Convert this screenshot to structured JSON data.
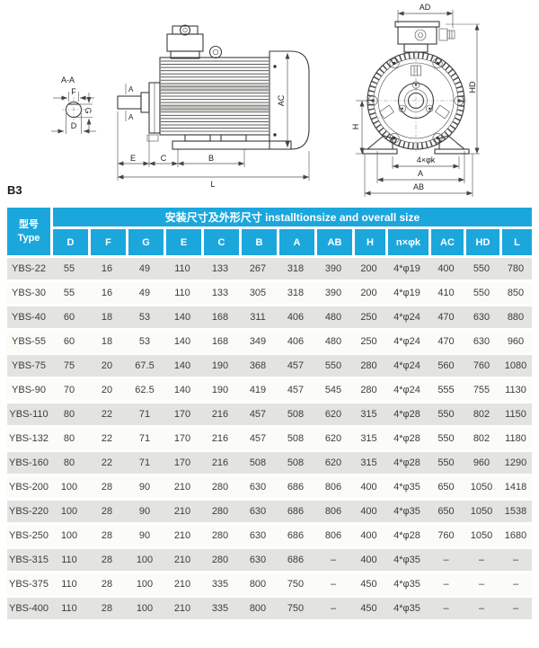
{
  "drawing": {
    "mount_label": "B3",
    "section_label": "A-A",
    "dims": {
      "f": "F",
      "g": "G",
      "d": "D",
      "a_marker": "A",
      "e": "E",
      "c": "C",
      "b": "B",
      "l": "L",
      "ac": "AC",
      "ad": "AD",
      "hd": "HD",
      "h": "H",
      "bolt_holes": "4×φk",
      "a": "A",
      "ab": "AB"
    }
  },
  "table": {
    "type_header": {
      "zh": "型号",
      "en": "Type"
    },
    "group_header": "安装尺寸及外形尺寸 installtionsize and overall size",
    "columns": [
      "D",
      "F",
      "G",
      "E",
      "C",
      "B",
      "A",
      "AB",
      "H",
      "n×φk",
      "AC",
      "HD",
      "L"
    ],
    "rows": [
      [
        "YBS-22",
        "55",
        "16",
        "49",
        "110",
        "133",
        "267",
        "318",
        "390",
        "200",
        "4*φ19",
        "400",
        "550",
        "780"
      ],
      [
        "YBS-30",
        "55",
        "16",
        "49",
        "110",
        "133",
        "305",
        "318",
        "390",
        "200",
        "4*φ19",
        "410",
        "550",
        "850"
      ],
      [
        "YBS-40",
        "60",
        "18",
        "53",
        "140",
        "168",
        "311",
        "406",
        "480",
        "250",
        "4*φ24",
        "470",
        "630",
        "880"
      ],
      [
        "YBS-55",
        "60",
        "18",
        "53",
        "140",
        "168",
        "349",
        "406",
        "480",
        "250",
        "4*φ24",
        "470",
        "630",
        "960"
      ],
      [
        "YBS-75",
        "75",
        "20",
        "67.5",
        "140",
        "190",
        "368",
        "457",
        "550",
        "280",
        "4*φ24",
        "560",
        "760",
        "1080"
      ],
      [
        "YBS-90",
        "70",
        "20",
        "62.5",
        "140",
        "190",
        "419",
        "457",
        "545",
        "280",
        "4*φ24",
        "555",
        "755",
        "1130"
      ],
      [
        "YBS-110",
        "80",
        "22",
        "71",
        "170",
        "216",
        "457",
        "508",
        "620",
        "315",
        "4*φ28",
        "550",
        "802",
        "1150"
      ],
      [
        "YBS-132",
        "80",
        "22",
        "71",
        "170",
        "216",
        "457",
        "508",
        "620",
        "315",
        "4*φ28",
        "550",
        "802",
        "1180"
      ],
      [
        "YBS-160",
        "80",
        "22",
        "71",
        "170",
        "216",
        "508",
        "508",
        "620",
        "315",
        "4*φ28",
        "550",
        "960",
        "1290"
      ],
      [
        "YBS-200",
        "100",
        "28",
        "90",
        "210",
        "280",
        "630",
        "686",
        "806",
        "400",
        "4*φ35",
        "650",
        "1050",
        "1418"
      ],
      [
        "YBS-220",
        "100",
        "28",
        "90",
        "210",
        "280",
        "630",
        "686",
        "806",
        "400",
        "4*φ35",
        "650",
        "1050",
        "1538"
      ],
      [
        "YBS-250",
        "100",
        "28",
        "90",
        "210",
        "280",
        "630",
        "686",
        "806",
        "400",
        "4*φ28",
        "760",
        "1050",
        "1680"
      ],
      [
        "YBS-315",
        "110",
        "28",
        "100",
        "210",
        "280",
        "630",
        "686",
        "–",
        "400",
        "4*φ35",
        "–",
        "–",
        "–"
      ],
      [
        "YBS-375",
        "110",
        "28",
        "100",
        "210",
        "335",
        "800",
        "750",
        "–",
        "450",
        "4*φ35",
        "–",
        "–",
        "–"
      ],
      [
        "YBS-400",
        "110",
        "28",
        "100",
        "210",
        "335",
        "800",
        "750",
        "–",
        "450",
        "4*φ35",
        "–",
        "–",
        "–"
      ]
    ],
    "colors": {
      "header_bg": "#1ba7dc",
      "row_alt_bg": "#e3e3e0",
      "row_bg": "#fbfbf8"
    }
  }
}
